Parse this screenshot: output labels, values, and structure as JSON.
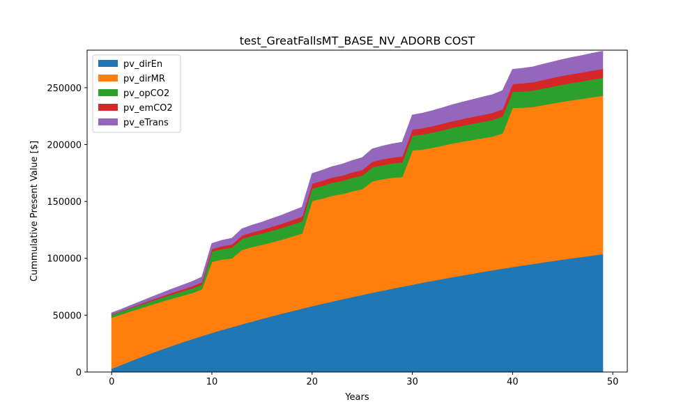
{
  "chart_data": {
    "type": "area",
    "stacked": true,
    "title": "test_GreatFallsMT_BASE_NV_ADORB COST",
    "xlabel": "Years",
    "ylabel": "Cummulative Present Value [$]",
    "xlim": [
      -2.45,
      51.45
    ],
    "ylim": [
      0,
      283000
    ],
    "xticks": [
      0,
      10,
      20,
      30,
      40,
      50
    ],
    "yticks": [
      0,
      50000,
      100000,
      150000,
      200000,
      250000
    ],
    "legend_position": "top-left",
    "grid": false,
    "x": [
      0,
      1,
      2,
      3,
      4,
      5,
      6,
      7,
      8,
      9,
      10,
      11,
      12,
      13,
      14,
      15,
      16,
      17,
      18,
      19,
      20,
      21,
      22,
      23,
      24,
      25,
      26,
      27,
      28,
      29,
      30,
      31,
      32,
      33,
      34,
      35,
      36,
      37,
      38,
      39,
      40,
      41,
      42,
      43,
      44,
      45,
      46,
      47,
      48,
      49
    ],
    "series": [
      {
        "name": "pv_dirEn",
        "color": "#1f77b4",
        "values": [
          3000,
          6600,
          10100,
          13500,
          16800,
          20000,
          23100,
          26100,
          29000,
          31800,
          34500,
          37100,
          39600,
          42100,
          44500,
          46900,
          49200,
          51500,
          53700,
          55900,
          58000,
          60100,
          62100,
          64100,
          66000,
          67900,
          69800,
          71600,
          73400,
          75200,
          76900,
          78600,
          80300,
          81900,
          83500,
          85100,
          86600,
          88100,
          89600,
          91000,
          92400,
          93800,
          95100,
          96400,
          97700,
          99000,
          100200,
          101400,
          102600,
          103800
        ]
      },
      {
        "name": "pv_dirMR",
        "color": "#ff7f0e",
        "values": [
          45000,
          44200,
          43600,
          43000,
          42500,
          42000,
          41500,
          41000,
          40500,
          41000,
          62500,
          62000,
          60500,
          65500,
          65500,
          65000,
          65000,
          65000,
          65500,
          66000,
          92500,
          92500,
          93000,
          92500,
          93000,
          93000,
          98000,
          98000,
          97500,
          96500,
          118000,
          117200,
          117000,
          117200,
          117600,
          117600,
          117600,
          117600,
          117600,
          119000,
          140000,
          138800,
          138000,
          138300,
          138600,
          138800,
          139000,
          139000,
          139200,
          139200
        ]
      },
      {
        "name": "pv_opCO2",
        "color": "#2ca02c",
        "values": [
          2500,
          2600,
          2800,
          3000,
          3200,
          3400,
          3600,
          3800,
          4000,
          4200,
          9000,
          9200,
          9400,
          9600,
          9800,
          10000,
          10200,
          10400,
          10600,
          10800,
          11000,
          11200,
          11400,
          11600,
          11800,
          12000,
          12200,
          12400,
          12600,
          12800,
          13000,
          13200,
          13400,
          13600,
          13800,
          14000,
          14200,
          14400,
          14600,
          14800,
          14000,
          14200,
          14400,
          14600,
          14800,
          15000,
          15200,
          15400,
          15600,
          15800
        ]
      },
      {
        "name": "pv_emCO2",
        "color": "#d62728",
        "values": [
          400,
          500,
          700,
          900,
          1100,
          1300,
          1500,
          1700,
          1900,
          2100,
          2300,
          2500,
          2700,
          2900,
          3100,
          3300,
          3500,
          3700,
          3900,
          4100,
          4300,
          4500,
          4600,
          4700,
          4800,
          4900,
          5000,
          5100,
          5200,
          5300,
          5400,
          5500,
          5600,
          5700,
          5800,
          5900,
          6000,
          6100,
          6200,
          6300,
          7000,
          7200,
          7400,
          7600,
          7700,
          7800,
          7800,
          7800,
          7800,
          7800
        ]
      },
      {
        "name": "pv_eTrans",
        "color": "#9467bd",
        "values": [
          1100,
          1400,
          1700,
          2000,
          2400,
          2800,
          3200,
          3600,
          4000,
          4400,
          4700,
          5000,
          5400,
          5800,
          6200,
          6600,
          7000,
          7400,
          7800,
          8200,
          8700,
          9100,
          9500,
          9900,
          10300,
          10700,
          11100,
          11500,
          11900,
          12300,
          12700,
          13100,
          13500,
          13900,
          14300,
          14700,
          15100,
          15500,
          15900,
          16300,
          12700,
          13000,
          13300,
          13600,
          13900,
          14200,
          14500,
          14800,
          15100,
          15400
        ]
      }
    ]
  }
}
